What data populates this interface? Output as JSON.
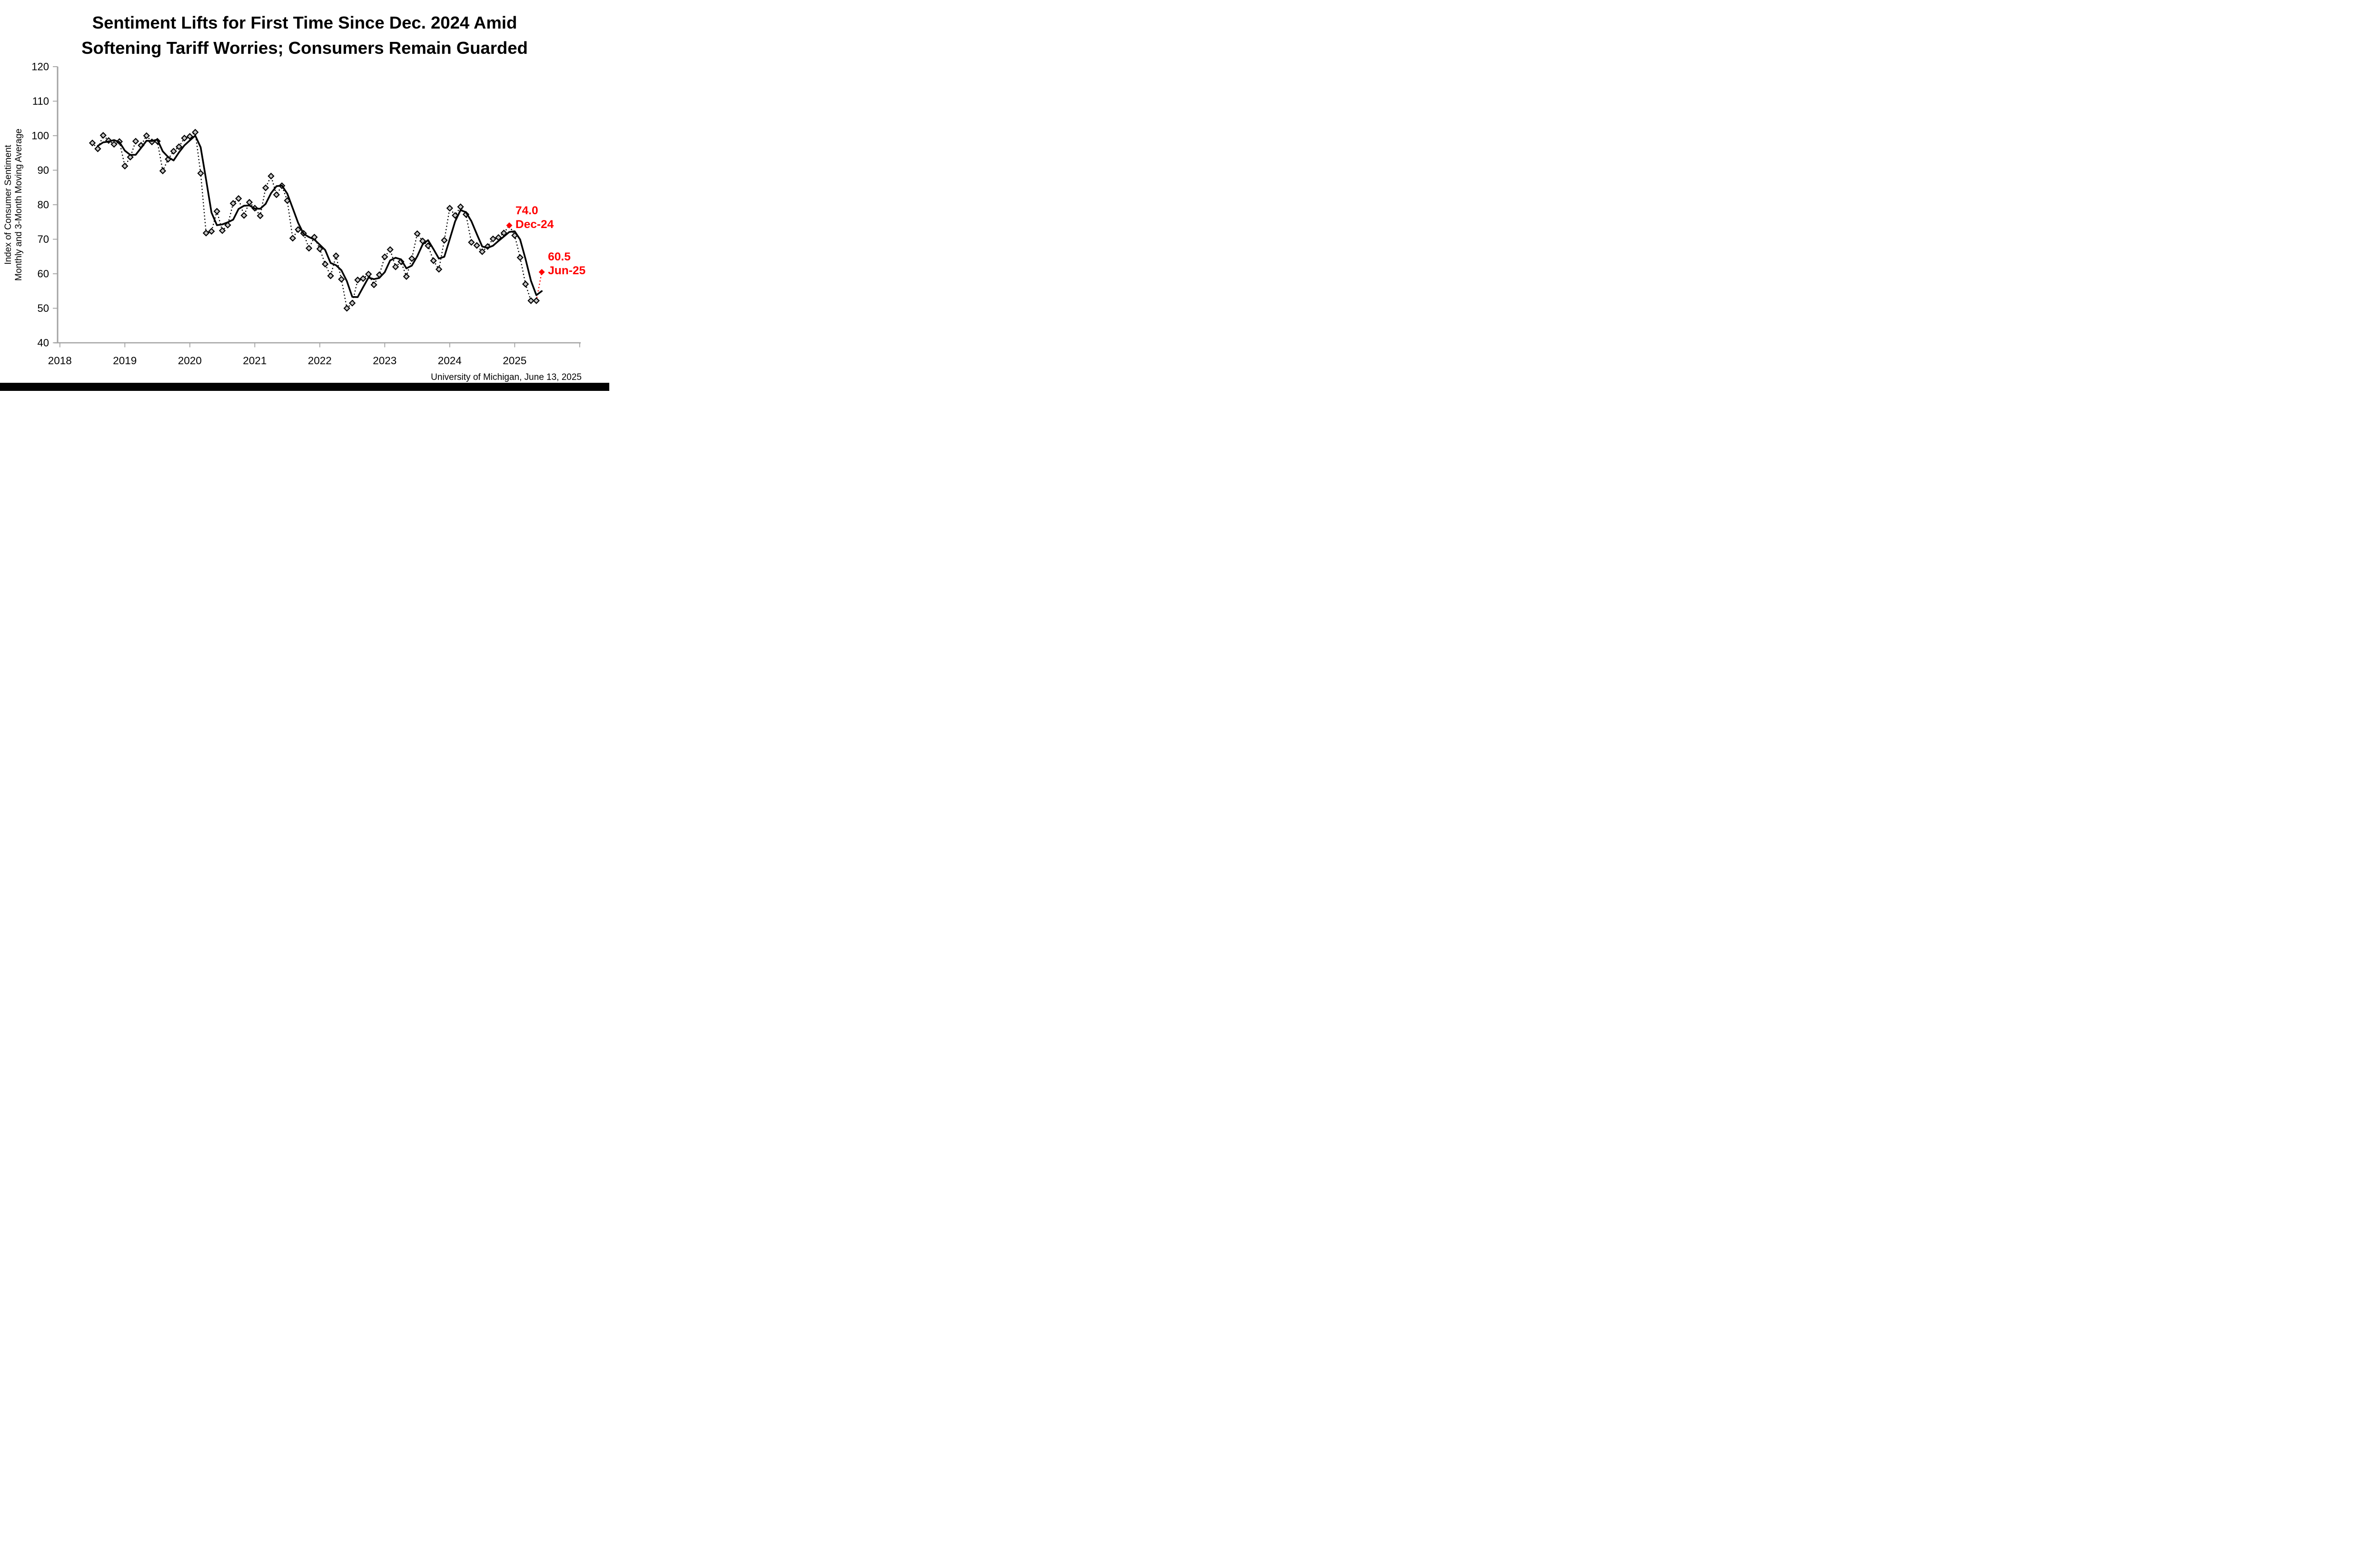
{
  "title": {
    "line1": "Sentiment Lifts for First Time Since Dec. 2024 Amid",
    "line2": "Softening Tariff Worries; Consumers Remain Guarded"
  },
  "y_axis": {
    "title_line1": "Index of Consumer Sentiment",
    "title_line2": "Monthly and 3-Month Moving Average",
    "min": 40,
    "max": 120,
    "tick_step": 10,
    "tick_labels": [
      "40",
      "50",
      "60",
      "70",
      "80",
      "90",
      "100",
      "110",
      "120"
    ]
  },
  "x_axis": {
    "tick_labels": [
      "2018",
      "2019",
      "2020",
      "2021",
      "2022",
      "2023",
      "2024",
      "2025"
    ],
    "unlabeled_end_tick": true
  },
  "source": "University of Michigan, June 13, 2025",
  "colors": {
    "accent_red": "#ff0000",
    "marker_fill": "#c6c6c6",
    "marker_stroke": "#000000",
    "line_black": "#000000",
    "axis_gray": "#a3a3a3",
    "footer_bar": "#000000"
  },
  "annotations": [
    {
      "value_label": "74.0",
      "date_label": "Dec-24",
      "month": "2024-12",
      "value": 74.0
    },
    {
      "value_label": "60.5",
      "date_label": "Jun-25",
      "month": "2025-06",
      "value": 60.5
    }
  ],
  "chart_data": {
    "type": "line",
    "title": "Sentiment Lifts for First Time Since Dec. 2024 Amid Softening Tariff Worries; Consumers Remain Guarded",
    "xlabel": "",
    "ylabel": "Index of Consumer Sentiment Monthly and 3-Month Moving Average",
    "ylim": [
      40,
      120
    ],
    "xlim_years": [
      2018,
      2026
    ],
    "grid": false,
    "legend": "none",
    "months": [
      "2018-07",
      "2018-08",
      "2018-09",
      "2018-10",
      "2018-11",
      "2018-12",
      "2019-01",
      "2019-02",
      "2019-03",
      "2019-04",
      "2019-05",
      "2019-06",
      "2019-07",
      "2019-08",
      "2019-09",
      "2019-10",
      "2019-11",
      "2019-12",
      "2020-01",
      "2020-02",
      "2020-03",
      "2020-04",
      "2020-05",
      "2020-06",
      "2020-07",
      "2020-08",
      "2020-09",
      "2020-10",
      "2020-11",
      "2020-12",
      "2021-01",
      "2021-02",
      "2021-03",
      "2021-04",
      "2021-05",
      "2021-06",
      "2021-07",
      "2021-08",
      "2021-09",
      "2021-10",
      "2021-11",
      "2021-12",
      "2022-01",
      "2022-02",
      "2022-03",
      "2022-04",
      "2022-05",
      "2022-06",
      "2022-07",
      "2022-08",
      "2022-09",
      "2022-10",
      "2022-11",
      "2022-12",
      "2023-01",
      "2023-02",
      "2023-03",
      "2023-04",
      "2023-05",
      "2023-06",
      "2023-07",
      "2023-08",
      "2023-09",
      "2023-10",
      "2023-11",
      "2023-12",
      "2024-01",
      "2024-02",
      "2024-03",
      "2024-04",
      "2024-05",
      "2024-06",
      "2024-07",
      "2024-08",
      "2024-09",
      "2024-10",
      "2024-11",
      "2024-12",
      "2025-01",
      "2025-02",
      "2025-03",
      "2025-04",
      "2025-05",
      "2025-06"
    ],
    "series": [
      {
        "name": "Monthly Index of Consumer Sentiment",
        "style": "dotted black line with gray diamond markers",
        "values": [
          97.9,
          96.2,
          100.1,
          98.6,
          97.5,
          98.3,
          91.2,
          93.8,
          98.4,
          97.2,
          100.0,
          98.2,
          98.4,
          89.8,
          93.2,
          95.5,
          96.8,
          99.3,
          99.8,
          101.0,
          89.1,
          71.8,
          72.3,
          78.1,
          72.5,
          74.1,
          80.4,
          81.8,
          76.9,
          80.7,
          79.0,
          76.8,
          84.9,
          88.3,
          82.9,
          85.5,
          81.2,
          70.3,
          72.8,
          71.7,
          67.4,
          70.6,
          67.2,
          62.8,
          59.4,
          65.2,
          58.4,
          50.0,
          51.5,
          58.2,
          58.6,
          59.9,
          56.8,
          59.7,
          64.9,
          67.0,
          62.0,
          63.5,
          59.2,
          64.4,
          71.6,
          69.5,
          68.1,
          63.8,
          61.3,
          69.7,
          79.0,
          76.9,
          79.4,
          77.2,
          69.1,
          68.2,
          66.4,
          67.9,
          70.1,
          70.5,
          71.8,
          74.0,
          71.1,
          64.7,
          57.0,
          52.2,
          52.2,
          60.5
        ]
      },
      {
        "name": "3-Month Moving Average",
        "style": "solid black line, no markers",
        "derivation": "trailing 3-month mean of the monthly values (computed)"
      }
    ],
    "highlighted_points": [
      {
        "month": "2024-12",
        "value": 74.0,
        "marker": "red diamond"
      },
      {
        "month": "2025-06",
        "value": 60.5,
        "marker": "red diamond, reached by red dotted segment"
      }
    ]
  }
}
